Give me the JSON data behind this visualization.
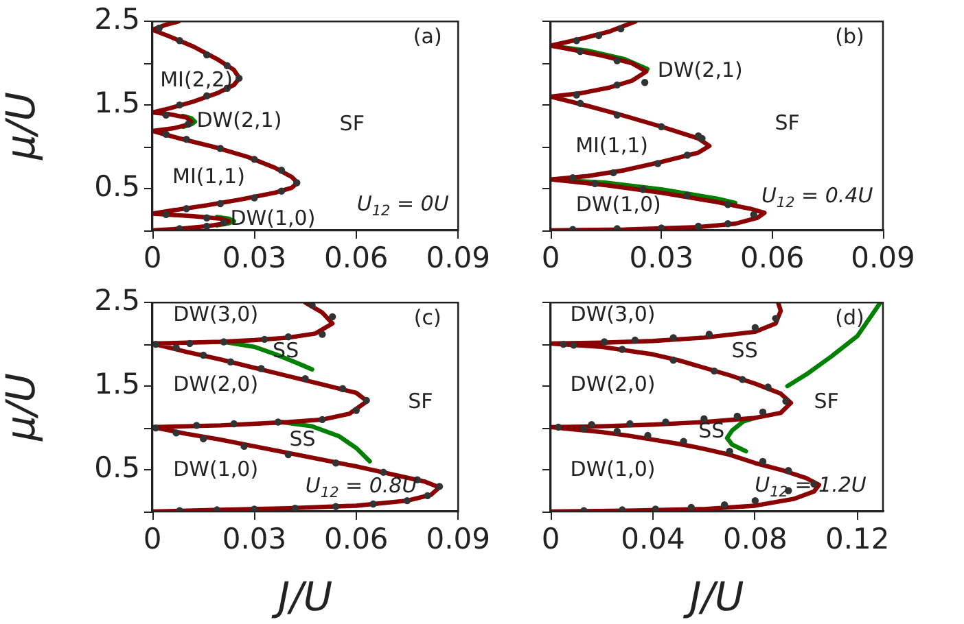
{
  "chart_data": [
    {
      "type": "line",
      "ylabel": "μ/U",
      "xlim": [
        0,
        0.09
      ],
      "xticks": [
        0,
        0.03,
        0.06,
        0.09
      ],
      "ylim": [
        0,
        2.5
      ],
      "yticks": [
        {
          "value": 0,
          "label": null
        },
        0.5,
        {
          "value": 1,
          "label": null
        },
        1.5,
        {
          "value": 2,
          "label": null
        },
        2.5
      ],
      "series": [
        {
          "color": "#008000",
          "x": [
            0.019,
            0.0225,
            0.024,
            0.0225,
            0.019,
            null,
            0.009,
            0.0115,
            0.0125,
            0.0115,
            0.009
          ],
          "values": [
            0.06,
            0.085,
            0.11,
            0.14,
            0.16,
            null,
            1.24,
            1.27,
            1.3,
            1.34,
            1.37
          ]
        },
        {
          "color": "#8b0000",
          "x": [
            0,
            0.008,
            0.016,
            0.021,
            0.0225,
            0.02,
            0.012,
            0.004,
            0,
            0.006,
            0.016,
            0.026,
            0.036,
            0.041,
            0.0427,
            0.041,
            0.036,
            0.028,
            0.018,
            0.008,
            0,
            0.006,
            0.01,
            0.0114,
            0.01,
            0.005,
            0,
            0.005,
            0.012,
            0.019,
            0.024,
            0.0256,
            0.024,
            0.019,
            0.012,
            0.005,
            0,
            0.004,
            0.0077
          ],
          "values": [
            0,
            0.02,
            0.05,
            0.08,
            0.11,
            0.14,
            0.17,
            0.19,
            0.2,
            0.24,
            0.3,
            0.37,
            0.45,
            0.51,
            0.57,
            0.64,
            0.75,
            0.88,
            1.0,
            1.1,
            1.19,
            1.22,
            1.26,
            1.3,
            1.35,
            1.39,
            1.41,
            1.46,
            1.54,
            1.64,
            1.74,
            1.82,
            1.92,
            2.05,
            2.2,
            2.32,
            2.4,
            2.46,
            2.5
          ]
        },
        {
          "type": "scatter",
          "marker": "circle",
          "color": "#333333",
          "x": [
            0.008,
            0.016,
            0.021,
            0.016,
            0.004,
            0.01,
            0.02,
            0.03,
            0.038,
            0.0425,
            0.038,
            0.03,
            0.02,
            0.01,
            0.004,
            0.0105,
            0.004,
            0.008,
            0.016,
            0.022,
            0.0255,
            0.022,
            0.016,
            0.008,
            0.002
          ],
          "values": [
            0.02,
            0.05,
            0.09,
            0.15,
            0.19,
            0.26,
            0.32,
            0.39,
            0.47,
            0.57,
            0.72,
            0.85,
            0.98,
            1.09,
            1.15,
            1.27,
            1.38,
            1.5,
            1.61,
            1.7,
            1.82,
            1.97,
            2.1,
            2.27,
            2.42
          ]
        }
      ],
      "annotations": [
        "(a)",
        "MI(2,2)",
        "DW(2,1)",
        "SF",
        "MI(1,1)",
        "U$_{12}$ = 0U",
        "DW(1,0)"
      ]
    },
    {
      "type": "line",
      "tick_labels": "x",
      "xlim": [
        0,
        0.09
      ],
      "xticks": [
        0,
        0.03,
        0.06,
        0.09
      ],
      "ylim": [
        0,
        2.5
      ],
      "yticks": [
        {
          "value": 0,
          "label": null
        },
        {
          "value": 0.5,
          "label": null
        },
        {
          "value": 1,
          "label": null
        },
        {
          "value": 1.5,
          "label": null
        },
        {
          "value": 2,
          "label": null
        },
        {
          "value": 2.5,
          "label": null
        }
      ],
      "series": [
        {
          "color": "#008000",
          "x": [
            0,
            0.015,
            0.03,
            0.045,
            0.05,
            null,
            0,
            0.01,
            0.02,
            0.0262
          ],
          "values": [
            0.61,
            0.57,
            0.49,
            0.38,
            0.33,
            null,
            2.21,
            2.15,
            2.05,
            1.93
          ]
        },
        {
          "color": "#8b0000",
          "x": [
            0,
            0.02,
            0.04,
            0.05,
            0.056,
            0.0579,
            0.054,
            0.045,
            0.03,
            0.015,
            0,
            0.01,
            0.02,
            0.03,
            0.04,
            0.043,
            0.04,
            0.03,
            0.02,
            0.01,
            0,
            0.008,
            0.016,
            0.022,
            0.0259,
            0.022,
            0.014,
            0.006,
            0,
            0.008,
            0.016,
            0.023
          ],
          "values": [
            0,
            0.01,
            0.04,
            0.08,
            0.15,
            0.21,
            0.26,
            0.34,
            0.45,
            0.54,
            0.61,
            0.65,
            0.72,
            0.82,
            0.93,
            1.01,
            1.1,
            1.24,
            1.37,
            1.49,
            1.6,
            1.64,
            1.71,
            1.79,
            1.9,
            2.0,
            2.09,
            2.16,
            2.21,
            2.29,
            2.38,
            2.5
          ]
        },
        {
          "type": "scatter",
          "marker": "circle",
          "color": "#333333",
          "x": [
            0.006,
            0.018,
            0.03,
            0.04,
            0.048,
            0.055,
            0.048,
            0.037,
            0.025,
            0.012,
            0.006,
            0.017,
            0.029,
            0.037,
            0.041,
            0.04,
            0.03,
            0.018,
            0.008,
            0.007,
            0.018,
            0.0255,
            0.018,
            0.008,
            0.007,
            0.013,
            0.019
          ],
          "values": [
            0.01,
            0.02,
            0.03,
            0.05,
            0.08,
            0.19,
            0.31,
            0.42,
            0.49,
            0.56,
            0.63,
            0.69,
            0.8,
            0.9,
            1.1,
            1.13,
            1.24,
            1.38,
            1.52,
            1.62,
            1.74,
            1.77,
            2.03,
            2.14,
            2.27,
            2.33,
            2.41
          ]
        }
      ],
      "annotations": [
        "(b)",
        "DW(2,1)",
        "SF",
        "MI(1,1)",
        "DW(1,0)",
        "U$_{12}$ = 0.4U"
      ]
    },
    {
      "type": "line",
      "xlabel": "J/U",
      "ylabel": "μ/U",
      "xlim": [
        0,
        0.09
      ],
      "xticks": [
        0,
        0.03,
        0.06,
        0.09
      ],
      "ylim": [
        0,
        2.5
      ],
      "yticks": [
        {
          "value": 0,
          "label": null
        },
        0.5,
        {
          "value": 1,
          "label": null
        },
        1.5,
        {
          "value": 2,
          "label": null
        },
        2.5
      ],
      "series": [
        {
          "color": "#008000",
          "x": [
            0.021,
            0.03,
            0.037,
            0.043,
            0.047,
            null,
            0.038,
            0.047,
            0.055,
            0.06,
            0.064
          ],
          "values": [
            2.03,
            1.97,
            1.87,
            1.77,
            1.7,
            null,
            1.07,
            1.02,
            0.9,
            0.76,
            0.6
          ]
        },
        {
          "color": "#8b0000",
          "x": [
            0,
            0.02,
            0.04,
            0.06,
            0.075,
            0.082,
            0.0845,
            0.08,
            0.07,
            0.06,
            0.05,
            0.04,
            0.03,
            0.02,
            0.01,
            0,
            0.01,
            0.02,
            0.03,
            0.04,
            0.05,
            0.058,
            0.0632,
            0.06,
            0.05,
            0.04,
            0.03,
            0.02,
            0.01,
            0,
            0.01,
            0.02,
            0.03,
            0.04,
            0.048,
            0.053,
            0.05,
            0.045
          ],
          "values": [
            0,
            0.02,
            0.04,
            0.07,
            0.13,
            0.2,
            0.29,
            0.36,
            0.45,
            0.54,
            0.62,
            0.7,
            0.78,
            0.86,
            0.93,
            1.01,
            1.02,
            1.03,
            1.05,
            1.07,
            1.1,
            1.17,
            1.32,
            1.42,
            1.52,
            1.62,
            1.72,
            1.82,
            1.91,
            2.01,
            2.02,
            2.03,
            2.05,
            2.08,
            2.13,
            2.25,
            2.38,
            2.5
          ]
        },
        {
          "type": "scatter",
          "marker": "circle",
          "color": "#333333",
          "x": [
            0.008,
            0.019,
            0.03,
            0.042,
            0.054,
            0.065,
            0.075,
            0.081,
            0.0845,
            0.078,
            0.068,
            0.054,
            0.04,
            0.027,
            0.015,
            0.007,
            0.001,
            0.013,
            0.024,
            0.037,
            0.05,
            0.06,
            0.063,
            0.056,
            0.045,
            0.032,
            0.023,
            0.015,
            0.007,
            0.001,
            0.011,
            0.021,
            0.033,
            0.04,
            0.05,
            0.053,
            0.047
          ],
          "values": [
            0.01,
            0.02,
            0.03,
            0.04,
            0.06,
            0.09,
            0.13,
            0.19,
            0.3,
            0.38,
            0.47,
            0.58,
            0.68,
            0.78,
            0.87,
            0.94,
            1.0,
            1.03,
            1.05,
            1.07,
            1.1,
            1.21,
            1.33,
            1.47,
            1.59,
            1.71,
            1.79,
            1.87,
            1.96,
            2.0,
            2.01,
            2.03,
            2.06,
            2.09,
            2.12,
            2.33,
            2.47
          ]
        }
      ],
      "annotations": [
        "(c)",
        "DW(3,0)",
        "SS",
        "DW(2,0)",
        "SF",
        "SS",
        "DW(1,0)",
        "U$_{12}$ = 0.8U"
      ]
    },
    {
      "type": "line",
      "xlabel": "J/U",
      "tick_labels": "x",
      "xlim": [
        0,
        0.13
      ],
      "xticks": [
        0,
        0.04,
        0.08,
        0.12
      ],
      "ylim": [
        0,
        2.5
      ],
      "yticks": [
        {
          "value": 0,
          "label": null
        },
        {
          "value": 0.5,
          "label": null
        },
        {
          "value": 1,
          "label": null
        },
        {
          "value": 1.5,
          "label": null
        },
        {
          "value": 2,
          "label": null
        },
        {
          "value": 2.5,
          "label": null
        }
      ],
      "series": [
        {
          "color": "#008000",
          "x": [
            0.0764,
            0.071,
            0.069,
            0.071,
            0.0755,
            0.08,
            null,
            0.0926,
            0.1,
            0.11,
            0.12,
            0.129
          ],
          "values": [
            0.72,
            0.8,
            0.88,
            0.97,
            1.08,
            1.12,
            null,
            1.5,
            1.64,
            1.86,
            2.1,
            2.5
          ]
        },
        {
          "color": "#8b0000",
          "x": [
            0,
            0.03,
            0.06,
            0.08,
            0.095,
            0.103,
            0.105,
            0.1,
            0.09,
            0.08,
            0.07,
            0.06,
            0.05,
            0.04,
            0.03,
            0.02,
            0.01,
            0,
            0.02,
            0.04,
            0.06,
            0.08,
            0.09,
            0.094,
            0.09,
            0.08,
            0.07,
            0.06,
            0.05,
            0.04,
            0.02,
            0,
            0.02,
            0.04,
            0.06,
            0.08,
            0.088,
            0.09,
            0.089
          ],
          "values": [
            0,
            0.01,
            0.03,
            0.07,
            0.15,
            0.24,
            0.32,
            0.4,
            0.5,
            0.58,
            0.68,
            0.75,
            0.81,
            0.86,
            0.91,
            0.95,
            0.98,
            1.01,
            1.02,
            1.04,
            1.07,
            1.12,
            1.18,
            1.3,
            1.41,
            1.53,
            1.63,
            1.72,
            1.81,
            1.88,
            1.97,
            2.01,
            2.02,
            2.04,
            2.08,
            2.15,
            2.25,
            2.4,
            2.5
          ]
        },
        {
          "type": "scatter",
          "marker": "circle",
          "color": "#333333",
          "x": [
            0.013,
            0.028,
            0.041,
            0.055,
            0.068,
            0.08,
            0.093,
            0.103,
            0.093,
            0.083,
            0.07,
            0.052,
            0.038,
            0.026,
            0.013,
            0.003,
            0.016,
            0.031,
            0.045,
            0.06,
            0.073,
            0.083,
            0.092,
            0.085,
            0.075,
            0.064,
            0.048,
            0.028,
            0.009,
            0.005,
            0.021,
            0.033,
            0.048,
            0.062,
            0.08,
            0.088
          ],
          "values": [
            0.01,
            0.02,
            0.03,
            0.05,
            0.08,
            0.13,
            0.25,
            0.33,
            0.49,
            0.6,
            0.72,
            0.84,
            0.91,
            0.96,
            0.99,
            1.01,
            1.04,
            1.05,
            1.07,
            1.11,
            1.14,
            1.19,
            1.32,
            1.49,
            1.58,
            1.68,
            1.81,
            1.94,
            1.99,
            2.0,
            2.03,
            2.05,
            2.08,
            2.12,
            2.2,
            2.31
          ]
        }
      ],
      "annotations": [
        "(d)",
        "DW(3,0)",
        "SS",
        "DW(2,0)",
        "SF",
        "SS",
        "DW(1,0)",
        "U$_{12}$ = 1.2U"
      ]
    }
  ]
}
